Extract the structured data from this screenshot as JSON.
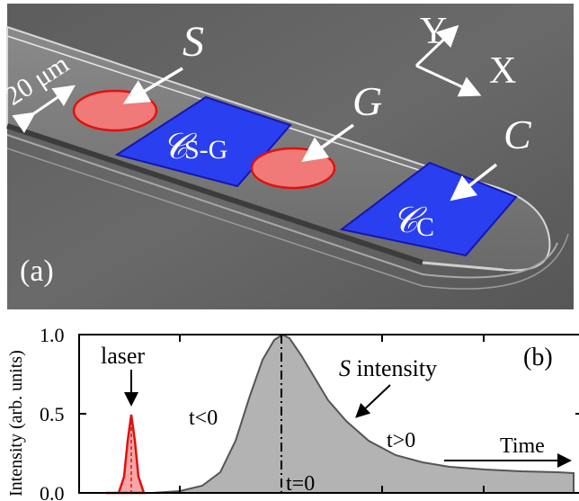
{
  "panel_a": {
    "panel_label": "(a)",
    "scale_label": "20 μm",
    "label_S": "S",
    "label_G": "G",
    "label_C": "C",
    "axis_y": "Y",
    "axis_x": "X",
    "cavity_sg_script": "𝒞",
    "cavity_sg_sub": "S-G",
    "cavity_c_script": "𝒞",
    "cavity_c_sub": "C"
  },
  "panel_b": {
    "panel_label": "(b)",
    "ylabel": "Intensity (arb. units)",
    "y_ticks": [
      "0.0",
      "0.5",
      "1.0"
    ],
    "laser_label": "laser",
    "s_intensity_italic": "S",
    "s_intensity_rest": " intensity",
    "t_neg": "t<0",
    "t_pos": "t>0",
    "t_zero": "t=0",
    "time_label": "Time"
  },
  "colors": {
    "cavity_fill": "#2a3ff0",
    "cavity_stroke": "#1515b0",
    "spot_fill": "#f07a78",
    "spot_stroke": "#e01010",
    "s_curve_fill": "#b3b3b3",
    "laser_curve": "#e01010"
  }
}
